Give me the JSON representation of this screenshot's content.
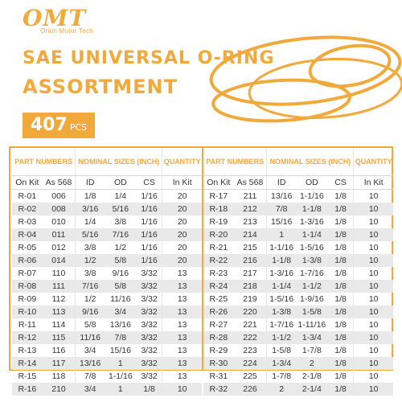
{
  "brand": {
    "logo_text": "OMT",
    "tagline": "Orion Motor Tech"
  },
  "title": {
    "line1": "SAE UNIVERSAL O-RING",
    "line2": "ASSORTMENT"
  },
  "count": {
    "value": "407",
    "unit": "PCS"
  },
  "colors": {
    "accent": "#f2a93b",
    "row_alt": "#e9e9e9"
  },
  "table": {
    "group_headers": {
      "part": "PART NUMBERS",
      "nominal": "NOMINAL SIZES (INCH)",
      "quantity": "QUANTITY"
    },
    "sub_headers": [
      "On Kit",
      "As 568",
      "ID",
      "OD",
      "CS",
      "In Kit"
    ],
    "left_rows": [
      [
        "R-01",
        "006",
        "1/8",
        "1/4",
        "1/16",
        "20"
      ],
      [
        "R-02",
        "008",
        "3/16",
        "5/16",
        "1/16",
        "20"
      ],
      [
        "R-03",
        "010",
        "1/4",
        "3/8",
        "1/16",
        "20"
      ],
      [
        "R-04",
        "011",
        "5/16",
        "7/16",
        "1/16",
        "20"
      ],
      [
        "R-05",
        "012",
        "3/8",
        "1/2",
        "1/16",
        "20"
      ],
      [
        "R-06",
        "014",
        "1/2",
        "5/8",
        "1/16",
        "20"
      ],
      [
        "R-07",
        "110",
        "3/8",
        "9/16",
        "3/32",
        "13"
      ],
      [
        "R-08",
        "111",
        "7/16",
        "5/8",
        "3/32",
        "13"
      ],
      [
        "R-09",
        "112",
        "1/2",
        "11/16",
        "3/32",
        "13"
      ],
      [
        "R-10",
        "113",
        "9/16",
        "3/4",
        "3/32",
        "13"
      ],
      [
        "R-11",
        "114",
        "5/8",
        "13/16",
        "3/32",
        "13"
      ],
      [
        "R-12",
        "115",
        "11/16",
        "7/8",
        "3/32",
        "13"
      ],
      [
        "R-13",
        "116",
        "3/4",
        "15/16",
        "3/32",
        "13"
      ],
      [
        "R-14",
        "117",
        "13/16",
        "1",
        "3/32",
        "13"
      ],
      [
        "R-15",
        "118",
        "7/8",
        "1-1/16",
        "3/32",
        "13"
      ],
      [
        "R-16",
        "210",
        "3/4",
        "1",
        "1/8",
        "10"
      ]
    ],
    "right_rows": [
      [
        "R-17",
        "211",
        "13/16",
        "1-1/16",
        "1/8",
        "10"
      ],
      [
        "R-18",
        "212",
        "7/8",
        "1-1/8",
        "1/8",
        "10"
      ],
      [
        "R-19",
        "213",
        "15/16",
        "1-3/16",
        "1/8",
        "10"
      ],
      [
        "R-20",
        "214",
        "1",
        "1-1/4",
        "1/8",
        "10"
      ],
      [
        "R-21",
        "215",
        "1-1/16",
        "1-5/16",
        "1/8",
        "10"
      ],
      [
        "R-22",
        "216",
        "1-1/8",
        "1-3/8",
        "1/8",
        "10"
      ],
      [
        "R-23",
        "217",
        "1-3/16",
        "1-7/16",
        "1/8",
        "10"
      ],
      [
        "R-24",
        "218",
        "1-1/4",
        "1-1/2",
        "1/8",
        "10"
      ],
      [
        "R-25",
        "219",
        "1-5/16",
        "1-9/16",
        "1/8",
        "10"
      ],
      [
        "R-26",
        "220",
        "1-3/8",
        "1-5/8",
        "1/8",
        "10"
      ],
      [
        "R-27",
        "221",
        "1-7/16",
        "1-11/16",
        "1/8",
        "10"
      ],
      [
        "R-28",
        "222",
        "1-1/2",
        "1-3/4",
        "1/8",
        "10"
      ],
      [
        "R-29",
        "223",
        "1-5/8",
        "1-7/8",
        "1/8",
        "10"
      ],
      [
        "R-30",
        "224",
        "1-3/4",
        "2",
        "1/8",
        "10"
      ],
      [
        "R-31",
        "225",
        "1-7/8",
        "2-1/8",
        "1/8",
        "10"
      ],
      [
        "R-32",
        "226",
        "2",
        "2-1/4",
        "1/8",
        "10"
      ]
    ]
  }
}
